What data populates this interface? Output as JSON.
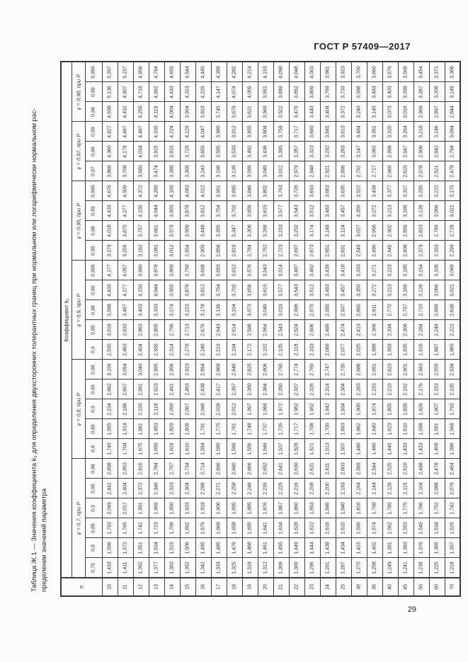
{
  "page": {
    "doc_number": "ГОСТ Р 57409—2017",
    "page_number": "29",
    "title_line1": "Таблица Ж.1 — Значения коэффициента k₁ для определения двухсторонних толерантных границ при нормальном или логарифмически нормальном рас-",
    "title_line2": "пределении значений параметра"
  },
  "table": {
    "coef_header": "Коэффициент k₁",
    "n_header": "n",
    "n_values": [
      "10",
      "11",
      "12",
      "13",
      "14",
      "15",
      "16",
      "17",
      "18",
      "19",
      "20",
      "21",
      "22",
      "23",
      "24",
      "25",
      "30",
      "35",
      "40",
      "45",
      "50",
      "60",
      "70"
    ],
    "groups": [
      {
        "label": "γ = 0,98, при Р",
        "rows": [
          {
            "p": "0,995",
            "values": [
              "5,397",
              "5,157",
              "4,956",
              "4,794",
              "4,659",
              "4,544",
              "4,445",
              "4,358",
              "4,282",
              "4,214",
              "4,153",
              "4,098",
              "4,048",
              "4,003",
              "3,961",
              "3,923",
              "3,700",
              "3,660",
              "3,576",
              "3,509",
              "3,454",
              "3,371",
              "3,308"
            ]
          },
          {
            "p": "0,99",
            "values": [
              "5,136",
              "4,907",
              "4,716",
              "4,562",
              "4,433",
              "4,323",
              "4,229",
              "4,147",
              "4,074",
              "4,009",
              "3,951",
              "3,899",
              "3,852",
              "3,809",
              "3,769",
              "3,733",
              "3,588",
              "3,483",
              "3,403",
              "3,339",
              "3,287",
              "3,208",
              "3,149"
            ]
          },
          {
            "p": "0,98",
            "values": [
              "4,638",
              "4,432",
              "4,259",
              "4,119",
              "4,004",
              "3,904",
              "3,819",
              "3,745",
              "3,679",
              "3,621",
              "3,569",
              "3,522",
              "3,479",
              "3,440",
              "3,404",
              "3,372",
              "3,240",
              "3,145",
              "3,073",
              "3,016",
              "2,969",
              "2,897",
              "2,844"
            ]
          }
        ]
      },
      {
        "label": "γ = 0,97, при Р",
        "rows": [
          {
            "p": "0,99",
            "values": [
              "4,827",
              "4,467",
              "4,467",
              "4,335",
              "4,224",
              "4,129",
              "4,047",
              "3,980",
              "3,912",
              "3,855",
              "3,804",
              "3,759",
              "3,717",
              "3,680",
              "3,645",
              "3,613",
              "3,484",
              "3,391",
              "3,320",
              "3,264",
              "3,218",
              "3,146",
              "3,094"
            ]
          },
          {
            "p": "0,98",
            "values": [
              "4,360",
              "4,179",
              "4,034",
              "3,915",
              "3,815",
              "3,729",
              "3,655",
              "3,595",
              "3,533",
              "3,482",
              "3,436",
              "3,395",
              "3,357",
              "3,323",
              "3,292",
              "3,263",
              "3,147",
              "3,063",
              "2,998",
              "2,947",
              "2,906",
              "2,842",
              "2,794"
            ]
          },
          {
            "p": "0,97",
            "values": [
              "3,868",
              "3,708",
              "3,580",
              "3,474",
              "3,385",
              "3,309",
              "3,243",
              "3,190",
              "3,135",
              "3,089",
              "3,049",
              "3,012",
              "2,979",
              "2,948",
              "2,921",
              "2,896",
              "2,792",
              "2,717",
              "2,660",
              "2,615",
              "2,578",
              "2,521",
              "2,479"
            ]
          }
        ]
      },
      {
        "label": "γ = 0,95, при Р",
        "rows": [
          {
            "p": "0,995",
            "values": [
              "4,676",
              "4,509",
              "4,372",
              "4,260",
              "4,165",
              "4,083",
              "4,012",
              "3,951",
              "3,895",
              "3,846",
              "3,802",
              "3,763",
              "3,726",
              "3,693",
              "3,663",
              "3,635",
              "3,522",
              "3,439",
              "3,377",
              "3,327",
              "3,285",
              "3,222",
              "3,175"
            ]
          },
          {
            "p": "0,99",
            "values": [
              "4,433",
              "4,277",
              "4,150",
              "4,044",
              "3,955",
              "3,878",
              "3,812",
              "3,754",
              "3,702",
              "3,656",
              "3,615",
              "3,577",
              "3,543",
              "3,512",
              "3,483",
              "3,457",
              "3,350",
              "3,272",
              "3,213",
              "3,165",
              "3,126",
              "3,066",
              "3,021"
            ]
          },
          {
            "p": "0,98",
            "values": [
              "4,018",
              "3,875",
              "3,757",
              "3,661",
              "3,579",
              "3,509",
              "3,448",
              "3,395",
              "3,347",
              "3,306",
              "3,268",
              "3,233",
              "3,202",
              "3,174",
              "3,148",
              "3,124",
              "3,027",
              "2,956",
              "2,902",
              "2,859",
              "2,823",
              "2,769",
              "2,728"
            ]
          },
          {
            "p": "0,95",
            "values": [
              "3,379",
              "3,259",
              "3,162",
              "3,081",
              "3,012",
              "2,954",
              "2,903",
              "2,858",
              "2,819",
              "2,784",
              "2,752",
              "2,723",
              "2,697",
              "2,673",
              "2,651",
              "2,631",
              "2,549",
              "2,490",
              "2,445",
              "2,408",
              "2,379",
              "2,333",
              "2,299"
            ]
          }
        ]
      },
      {
        "label": "γ = 0,9, при Р",
        "rows": [
          {
            "p": "0,995",
            "values": [
              "4,177",
              "4,057",
              "3,960",
              "3,878",
              "3,809",
              "3,750",
              "3,698",
              "3,653",
              "3,612",
              "3,576",
              "3,543",
              "3,514",
              "3,487",
              "3,462",
              "3,439",
              "3,418",
              "3,333",
              "3,271",
              "3,223",
              "3,185",
              "3,154",
              "3,105",
              "3,069"
            ]
          },
          {
            "p": "0,99",
            "values": [
              "4,433",
              "4,277",
              "4,150",
              "4,044",
              "3,955",
              "3,878",
              "3,812",
              "3,754",
              "3,702",
              "3,656",
              "3,615",
              "3,577",
              "3,543",
              "3,512",
              "3,483",
              "3,457",
              "3,350",
              "3,272",
              "3,213",
              "3,165",
              "3,126",
              "3,066",
              "3,021"
            ]
          },
          {
            "p": "0,98",
            "values": [
              "3,588",
              "3,487",
              "3,403",
              "3,333",
              "3,274",
              "3,223",
              "3,178",
              "3,139",
              "3,104",
              "3,073",
              "3,045",
              "3,019",
              "2,996",
              "2,975",
              "2,955",
              "2,937",
              "2,865",
              "2,811",
              "2,770",
              "2,737",
              "2,710",
              "2,669",
              "2,638"
            ]
          },
          {
            "p": "0,95",
            "values": [
              "3,018",
              "2,933",
              "2,863",
              "2,805",
              "2,756",
              "2,713",
              "2,676",
              "2,643",
              "2,614",
              "2,588",
              "2,564",
              "2,543",
              "2,524",
              "2,506",
              "2,489",
              "2,474",
              "2,413",
              "2,368",
              "2,334",
              "2,306",
              "2,284",
              "2,248",
              "2,222"
            ]
          },
          {
            "p": "0,9",
            "values": [
              "2,535",
              "2,463",
              "2,404",
              "2,355",
              "2,314",
              "2,278",
              "2,246",
              "2,219",
              "2,194",
              "2,172",
              "2,152",
              "2,135",
              "2,118",
              "2,103",
              "2,089",
              "2,077",
              "2,025",
              "1,988",
              "1,959",
              "1,935",
              "1,916",
              "1,887",
              "1,865"
            ]
          }
        ]
      },
      {
        "label": "γ = 0,8, при Р",
        "rows": [
          {
            "p": "0,98",
            "values": [
              "3,159",
              "3,094",
              "3,040",
              "2,995",
              "2,956",
              "2,923",
              "2,894",
              "2,868",
              "2,846",
              "2,825",
              "2,806",
              "2,790",
              "2,774",
              "2,760",
              "2,747",
              "2,735",
              "2,686",
              "2,651",
              "2,623",
              "2,601",
              "2,583",
              "2,555",
              "2,534"
            ]
          },
          {
            "p": "0,95",
            "values": [
              "2,662",
              "2,607",
              "2,561",
              "2,523",
              "2,491",
              "2,463",
              "2,438",
              "2,417",
              "2,397",
              "2,380",
              "2,364",
              "2,350",
              "2,337",
              "2,326",
              "2,314",
              "2,304",
              "2,263",
              "2,233",
              "2,210",
              "2,192",
              "2,176",
              "2,153",
              "2,135"
            ]
          },
          {
            "p": "0,9",
            "values": [
              "2,234",
              "2,188",
              "2,150",
              "2,118",
              "2,090",
              "2,067",
              "2,046",
              "2,028",
              "2,012",
              "1,997",
              "1,984",
              "1,972",
              "1,962",
              "1,952",
              "1,942",
              "1,934",
              "1,900",
              "1,874",
              "1,855",
              "1,839",
              "1,826",
              "1,807",
              "1,792"
            ]
          },
          {
            "p": "0,85",
            "values": [
              "1,955",
              "1,914",
              "1,881",
              "1,853",
              "1,829",
              "1,809",
              "1,791",
              "1,775",
              "1,761",
              "1,748",
              "1,737",
              "1,726",
              "1,717",
              "1,708",
              "1,700",
              "1,693",
              "1,662",
              "1,640",
              "1,623",
              "1,610",
              "1,598",
              "1,581",
              "1,568"
            ]
          },
          {
            "p": "0,8",
            "values": [
              "1,740",
              "1,704",
              "1,675",
              "1,650",
              "1,629",
              "1,610",
              "1,594",
              "1,580",
              "1,568",
              "1,556",
              "1,546",
              "1,537",
              "1,528",
              "1,521",
              "1,513",
              "1,507",
              "1,480",
              "1,460",
              "1,445",
              "1,433",
              "1,423",
              "1,408",
              "1,396"
            ]
          }
        ]
      },
      {
        "label": "γ = 0,7, при Р",
        "rows": [
          {
            "p": "0,98",
            "values": [
              "2,898",
              "2,853",
              "2,816",
              "2,784",
              "2,757",
              "2,734",
              "2,714",
              "2,696",
              "2,680",
              "2,666",
              "2,652",
              "2,641",
              "2,630",
              "2,621",
              "2,611",
              "2,603",
              "2,569",
              "2,544",
              "2,525",
              "2,510",
              "2,498",
              "2,478",
              "2,464"
            ]
          },
          {
            "p": "0,95",
            "values": [
              "2,441",
              "2,404",
              "2,372",
              "2,346",
              "2,323",
              "2,304",
              "2,286",
              "2,271",
              "2,258",
              "2,246",
              "2,235",
              "2,225",
              "2,216",
              "2,208",
              "2,200",
              "2,193",
              "2,164",
              "2,144",
              "2,128",
              "2,115",
              "2,104",
              "2,088",
              "2,076"
            ]
          },
          {
            "p": "0,9",
            "values": [
              "2,049",
              "2,017",
              "1,991",
              "1,969",
              "1,950",
              "1,933",
              "1,919",
              "1,906",
              "1,895",
              "1,885",
              "1,876",
              "1,867",
              "1,860",
              "1,853",
              "1,846",
              "1,840",
              "1,816",
              "1,798",
              "1,785",
              "1,775",
              "1,766",
              "1,752",
              "1,742"
            ]
          },
          {
            "p": "0,85",
            "values": [
              "1,793",
              "1,765",
              "1,742",
              "1,723",
              "1,706",
              "1,692",
              "1,679",
              "1,668",
              "1,658",
              "1,650",
              "1,641",
              "1,634",
              "1,628",
              "1,622",
              "1,616",
              "1,610",
              "1,590",
              "1,574",
              "1,562",
              "1,553",
              "1,545",
              "1,534",
              "1,525"
            ]
          },
          {
            "p": "0,8",
            "values": [
              "1,596",
              "1,572",
              "1,551",
              "1,534",
              "1,519",
              "1,506",
              "1,495",
              "1,485",
              "1,476",
              "1,468",
              "1,461",
              "1,455",
              "1,449",
              "1,444",
              "1,438",
              "1,434",
              "1,415",
              "1,402",
              "1,391",
              "1,383",
              "1,376",
              "1,365",
              "1,357"
            ]
          },
          {
            "p": "0,75",
            "values": [
              "1,433",
              "1,411",
              "1,392",
              "1,377",
              "1,363",
              "1,352",
              "1,342",
              "1,333",
              "1,325",
              "1,318",
              "1,312",
              "1,306",
              "1,300",
              "1,296",
              "1,291",
              "1,287",
              "1,270",
              "1,258",
              "1,249",
              "1,241",
              "1,235",
              "1,225",
              "1,218"
            ]
          }
        ]
      }
    ]
  }
}
